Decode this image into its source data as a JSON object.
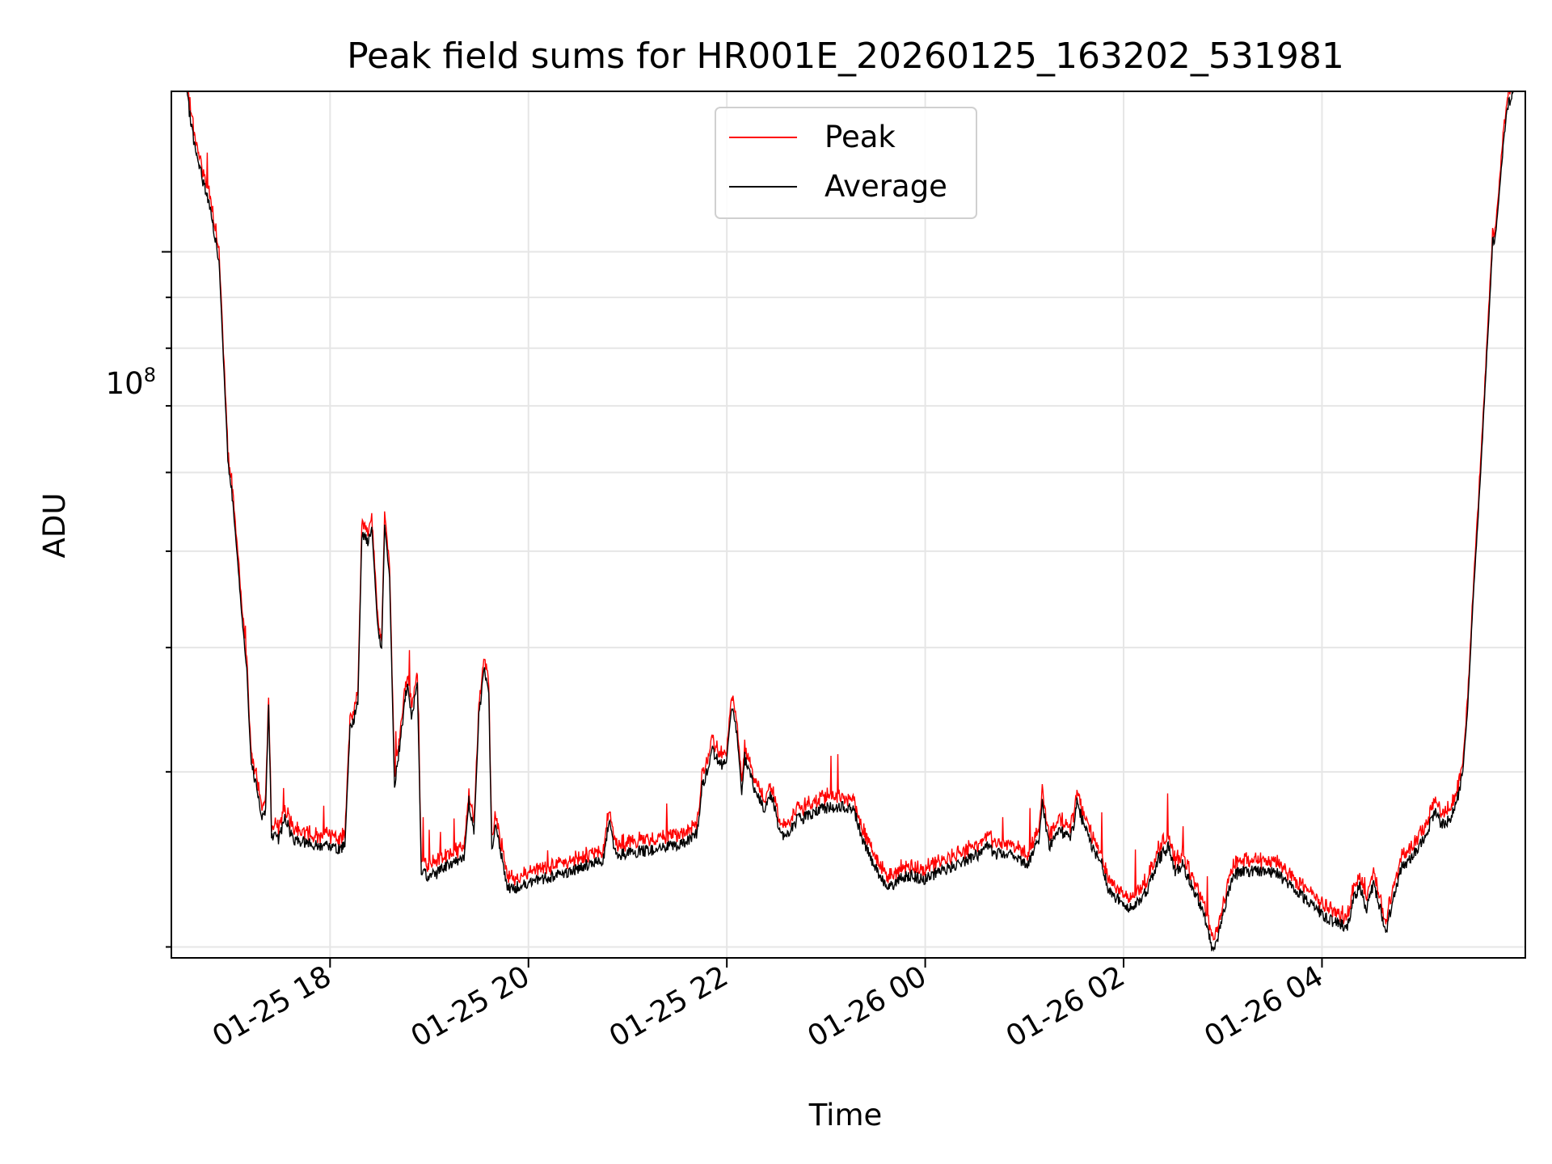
{
  "chart_data": {
    "type": "line",
    "title": "Peak field sums for HR001E_20260125_163202_531981",
    "xlabel": "Time",
    "ylabel": "ADU",
    "y_scale": "log",
    "y_tick_label": {
      "base": "10",
      "exp": "8"
    },
    "ylim": [
      19500000,
      145000000
    ],
    "x_start": "2026-01-25 16:32",
    "x_end": "2026-01-26 05:58",
    "x_ticks": [
      "01-25 18",
      "01-25 20",
      "01-25 22",
      "01-26 00",
      "01-26 02",
      "01-26 04"
    ],
    "x_tick_hours": [
      18,
      20,
      22,
      24,
      26,
      28
    ],
    "grid": true,
    "legend": {
      "position": "top-center",
      "entries": [
        "Peak",
        "Average"
      ]
    },
    "series": [
      {
        "name": "Peak",
        "color": "#ff0000"
      },
      {
        "name": "Average",
        "color": "#000000"
      }
    ],
    "average_points": [
      [
        16.55,
        145000000.0
      ],
      [
        16.65,
        125000000.0
      ],
      [
        16.78,
        112000000.0
      ],
      [
        16.88,
        98000000.0
      ],
      [
        16.97,
        62000000.0
      ],
      [
        17.02,
        56000000.0
      ],
      [
        17.12,
        42000000.0
      ],
      [
        17.16,
        38000000.0
      ],
      [
        17.2,
        31000000.0
      ],
      [
        17.28,
        28000000.0
      ],
      [
        17.32,
        27000000.0
      ],
      [
        17.35,
        27500000.0
      ],
      [
        17.38,
        35000000.0
      ],
      [
        17.41,
        26000000.0
      ],
      [
        17.48,
        25600000.0
      ],
      [
        17.55,
        27000000.0
      ],
      [
        17.62,
        25700000.0
      ],
      [
        17.75,
        25500000.0
      ],
      [
        17.9,
        25200000.0
      ],
      [
        17.96,
        25600000.0
      ],
      [
        18.0,
        25100000.0
      ],
      [
        18.1,
        25100000.0
      ],
      [
        18.15,
        25300000.0
      ],
      [
        18.2,
        33000000.0
      ],
      [
        18.28,
        35000000.0
      ],
      [
        18.32,
        52000000.0
      ],
      [
        18.38,
        51000000.0
      ],
      [
        18.42,
        53000000.0
      ],
      [
        18.48,
        42000000.0
      ],
      [
        18.52,
        40000000.0
      ],
      [
        18.55,
        53000000.0
      ],
      [
        18.6,
        47000000.0
      ],
      [
        18.65,
        29000000.0
      ],
      [
        18.72,
        33000000.0
      ],
      [
        18.78,
        37000000.0
      ],
      [
        18.82,
        34000000.0
      ],
      [
        18.88,
        37000000.0
      ],
      [
        18.92,
        23800000.0
      ],
      [
        19.0,
        23500000.0
      ],
      [
        19.1,
        23800000.0
      ],
      [
        19.2,
        24200000.0
      ],
      [
        19.35,
        24500000.0
      ],
      [
        19.4,
        28000000.0
      ],
      [
        19.45,
        26000000.0
      ],
      [
        19.5,
        34000000.0
      ],
      [
        19.55,
        38000000.0
      ],
      [
        19.6,
        36000000.0
      ],
      [
        19.63,
        25000000.0
      ],
      [
        19.67,
        26500000.0
      ],
      [
        19.72,
        25000000.0
      ],
      [
        19.78,
        23000000.0
      ],
      [
        19.85,
        22900000.0
      ],
      [
        20.0,
        23200000.0
      ],
      [
        20.2,
        23500000.0
      ],
      [
        20.4,
        23800000.0
      ],
      [
        20.6,
        24200000.0
      ],
      [
        20.75,
        24400000.0
      ],
      [
        20.82,
        27000000.0
      ],
      [
        20.87,
        24800000.0
      ],
      [
        21.0,
        24800000.0
      ],
      [
        21.2,
        25000000.0
      ],
      [
        21.4,
        25200000.0
      ],
      [
        21.6,
        25500000.0
      ],
      [
        21.7,
        26000000.0
      ],
      [
        21.75,
        29000000.0
      ],
      [
        21.82,
        30500000.0
      ],
      [
        21.85,
        31500000.0
      ],
      [
        21.95,
        30500000.0
      ],
      [
        22.0,
        31000000.0
      ],
      [
        22.05,
        35000000.0
      ],
      [
        22.1,
        33000000.0
      ],
      [
        22.15,
        28500000.0
      ],
      [
        22.18,
        31000000.0
      ],
      [
        22.22,
        30000000.0
      ],
      [
        22.3,
        28500000.0
      ],
      [
        22.38,
        27500000.0
      ],
      [
        22.45,
        28500000.0
      ],
      [
        22.52,
        26500000.0
      ],
      [
        22.58,
        25800000.0
      ],
      [
        22.7,
        26800000.0
      ],
      [
        22.85,
        27200000.0
      ],
      [
        23.0,
        27600000.0
      ],
      [
        23.15,
        27700000.0
      ],
      [
        23.28,
        27500000.0
      ],
      [
        23.35,
        26000000.0
      ],
      [
        23.45,
        24500000.0
      ],
      [
        23.55,
        23500000.0
      ],
      [
        23.65,
        23000000.0
      ],
      [
        23.75,
        23400000.0
      ],
      [
        23.85,
        23600000.0
      ],
      [
        24.0,
        23400000.0
      ],
      [
        24.15,
        23800000.0
      ],
      [
        24.35,
        24300000.0
      ],
      [
        24.55,
        24800000.0
      ],
      [
        24.62,
        25300000.0
      ],
      [
        24.7,
        24800000.0
      ],
      [
        24.85,
        24900000.0
      ],
      [
        24.95,
        24400000.0
      ],
      [
        25.05,
        24300000.0
      ],
      [
        25.15,
        25800000.0
      ],
      [
        25.18,
        28000000.0
      ],
      [
        25.25,
        25200000.0
      ],
      [
        25.35,
        26300000.0
      ],
      [
        25.45,
        25700000.0
      ],
      [
        25.5,
        26500000.0
      ],
      [
        25.53,
        28000000.0
      ],
      [
        25.6,
        26500000.0
      ],
      [
        25.7,
        25000000.0
      ],
      [
        25.78,
        24300000.0
      ],
      [
        25.85,
        22800000.0
      ],
      [
        25.95,
        22300000.0
      ],
      [
        26.05,
        21800000.0
      ],
      [
        26.15,
        22200000.0
      ],
      [
        26.25,
        23000000.0
      ],
      [
        26.35,
        24500000.0
      ],
      [
        26.45,
        25200000.0
      ],
      [
        26.52,
        23800000.0
      ],
      [
        26.6,
        24200000.0
      ],
      [
        26.7,
        22800000.0
      ],
      [
        26.8,
        21800000.0
      ],
      [
        26.9,
        19800000.0
      ],
      [
        26.95,
        20500000.0
      ],
      [
        27.0,
        21500000.0
      ],
      [
        27.05,
        22500000.0
      ],
      [
        27.1,
        23600000.0
      ],
      [
        27.2,
        23800000.0
      ],
      [
        27.35,
        23900000.0
      ],
      [
        27.55,
        23700000.0
      ],
      [
        27.7,
        23000000.0
      ],
      [
        27.85,
        22300000.0
      ],
      [
        28.0,
        21600000.0
      ],
      [
        28.1,
        21200000.0
      ],
      [
        28.2,
        21100000.0
      ],
      [
        28.25,
        20800000.0
      ],
      [
        28.32,
        22400000.0
      ],
      [
        28.38,
        23000000.0
      ],
      [
        28.45,
        21800000.0
      ],
      [
        28.52,
        23200000.0
      ],
      [
        28.6,
        21600000.0
      ],
      [
        28.65,
        20800000.0
      ],
      [
        28.72,
        22500000.0
      ],
      [
        28.8,
        24000000.0
      ],
      [
        28.95,
        25000000.0
      ],
      [
        29.05,
        26000000.0
      ],
      [
        29.15,
        27500000.0
      ],
      [
        29.2,
        26500000.0
      ],
      [
        29.3,
        27000000.0
      ],
      [
        29.38,
        28500000.0
      ],
      [
        29.42,
        30000000.0
      ],
      [
        29.47,
        35000000.0
      ],
      [
        29.52,
        44000000.0
      ],
      [
        29.6,
        60000000.0
      ],
      [
        29.65,
        75000000.0
      ],
      [
        29.7,
        93000000.0
      ],
      [
        29.72,
        102000000.0
      ],
      [
        29.75,
        104000000.0
      ],
      [
        29.82,
        125000000.0
      ],
      [
        29.87,
        140000000.0
      ],
      [
        29.93,
        145000000.0
      ]
    ]
  }
}
